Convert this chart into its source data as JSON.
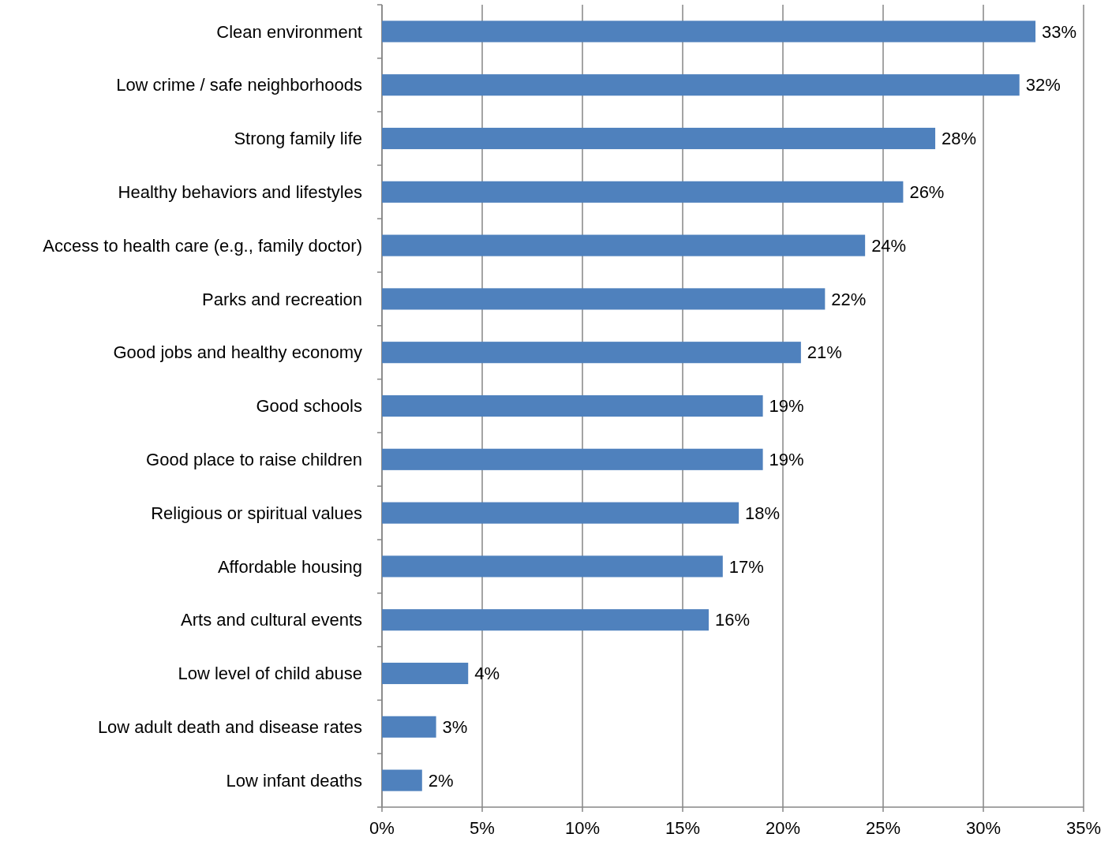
{
  "chart_data": {
    "type": "bar",
    "orientation": "horizontal",
    "categories": [
      "Clean environment",
      "Low crime / safe neighborhoods",
      "Strong family life",
      "Healthy behaviors and lifestyles",
      "Access to health care (e.g., family doctor)",
      "Parks and recreation",
      "Good jobs and healthy economy",
      "Good schools",
      "Good place to raise children",
      "Religious or spiritual values",
      "Affordable housing",
      "Arts and cultural events",
      "Low level of child abuse",
      "Low adult death and disease rates",
      "Low infant deaths"
    ],
    "values": [
      32.6,
      31.8,
      27.6,
      26.0,
      24.1,
      22.1,
      20.9,
      19.0,
      19.0,
      17.8,
      17.0,
      16.3,
      4.3,
      2.7,
      2.0
    ],
    "value_labels": [
      "33%",
      "32%",
      "28%",
      "26%",
      "24%",
      "22%",
      "21%",
      "19%",
      "19%",
      "18%",
      "17%",
      "16%",
      "4%",
      "3%",
      "2%"
    ],
    "color": "#4f81bd",
    "xlim": [
      0,
      35
    ],
    "xticks": [
      {
        "value": 0,
        "label": "0%"
      },
      {
        "value": 5,
        "label": "5%"
      },
      {
        "value": 10,
        "label": "10%"
      },
      {
        "value": 15,
        "label": "15%"
      },
      {
        "value": 20,
        "label": "20%"
      },
      {
        "value": 25,
        "label": "25%"
      },
      {
        "value": 30,
        "label": "30%"
      },
      {
        "value": 35,
        "label": "35%"
      }
    ],
    "grid": "x"
  }
}
